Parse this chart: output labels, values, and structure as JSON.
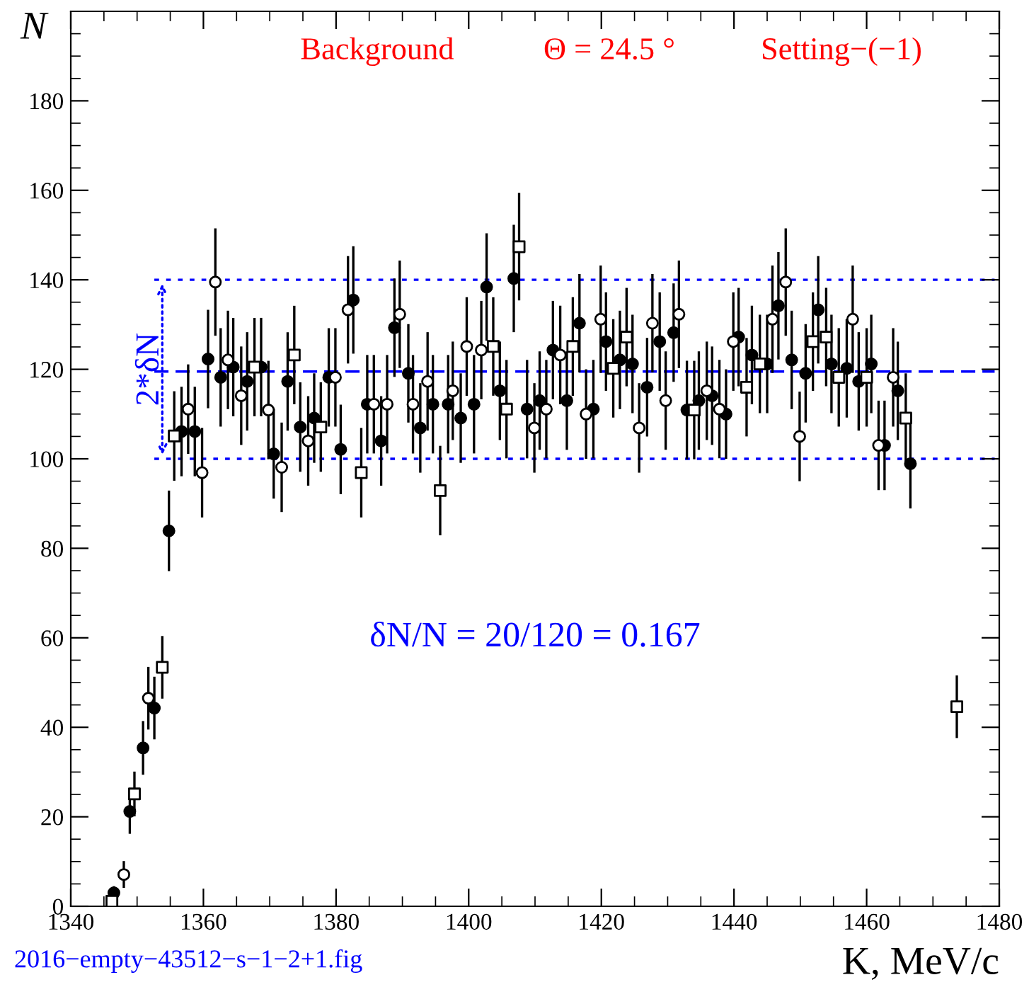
{
  "chart_data": {
    "type": "scatter",
    "xlabel": "K, MeV/c",
    "ylabel": "N",
    "xlim": [
      1340,
      1480
    ],
    "xticks": [
      1340,
      1360,
      1380,
      1400,
      1420,
      1440,
      1460,
      1480
    ],
    "ylim": [
      0,
      200
    ],
    "yticks": [
      0,
      20,
      40,
      60,
      80,
      100,
      120,
      140,
      160,
      180
    ],
    "grid": false,
    "series": [
      {
        "color": "#000000",
        "marker": "circle",
        "x": [
          1346.5,
          1348.9,
          1350.9,
          1352.6,
          1354.8,
          1356.7,
          1358.7,
          1360.7,
          1362.6,
          1364.5,
          1366.6,
          1368.7,
          1370.6,
          1372.7,
          1374.6,
          1376.7,
          1378.9,
          1380.7,
          1382.6,
          1384.7,
          1386.8,
          1388.8,
          1390.9,
          1392.7,
          1394.6,
          1396.9,
          1398.8,
          1400.8,
          1402.7,
          1404.7,
          1406.8,
          1408.8,
          1410.7,
          1412.7,
          1414.8,
          1416.7,
          1418.8,
          1420.7,
          1422.8,
          1424.7,
          1426.9,
          1428.8,
          1430.9,
          1432.9,
          1434.7,
          1436.7,
          1438.8,
          1440.7,
          1442.7,
          1445.0,
          1446.7,
          1448.7,
          1450.8,
          1452.7,
          1454.7,
          1457.0,
          1458.8,
          1460.7,
          1462.7,
          1464.7,
          1466.6
        ],
        "values": [
          3,
          21.2,
          35.4,
          44.3,
          83.9,
          106.1,
          106.1,
          122.3,
          118.2,
          120.5,
          117.3,
          120.5,
          101.1,
          117.3,
          107.1,
          109.1,
          118.2,
          102.1,
          135.5,
          112.2,
          104.0,
          129.3,
          119.1,
          106.9,
          112.2,
          112.2,
          109.1,
          112.2,
          138.4,
          115.2,
          140.3,
          111.1,
          113.0,
          124.3,
          113.0,
          130.3,
          111.1,
          126.2,
          122.1,
          121.2,
          116.0,
          126.2,
          128.2,
          110.9,
          113.0,
          114.1,
          110.0,
          127.2,
          123.2,
          121.2,
          134.2,
          122.1,
          119.1,
          133.3,
          121.2,
          120.2,
          117.3,
          121.2,
          103.0,
          115.2,
          98.9
        ],
        "errors": [
          1.5,
          5,
          6,
          7,
          9,
          10,
          10,
          11,
          11,
          11,
          11,
          11,
          10,
          11,
          10,
          10,
          11,
          10,
          12,
          11,
          10,
          11,
          11,
          10,
          11,
          11,
          10,
          11,
          12,
          11,
          12,
          11,
          11,
          11,
          11,
          11,
          11,
          11,
          11,
          11,
          11,
          11,
          11,
          11,
          11,
          11,
          10,
          11,
          11,
          11,
          12,
          11,
          11,
          12,
          11,
          11,
          11,
          11,
          10,
          11,
          10
        ]
      },
      {
        "color": "#ffffff",
        "marker": "circle",
        "x": [
          1348.0,
          1351.7,
          1357.7,
          1359.8,
          1361.8,
          1363.7,
          1365.7,
          1369.8,
          1371.8,
          1375.8,
          1379.9,
          1381.8,
          1385.7,
          1387.7,
          1389.6,
          1391.6,
          1393.8,
          1397.6,
          1399.7,
          1401.9,
          1409.9,
          1411.7,
          1413.8,
          1417.7,
          1419.9,
          1425.7,
          1427.7,
          1429.7,
          1431.7,
          1435.9,
          1437.8,
          1439.9,
          1445.8,
          1447.8,
          1449.9,
          1457.9,
          1461.8,
          1464.0
        ],
        "values": [
          7.1,
          46.5,
          111.1,
          96.9,
          139.5,
          122.1,
          114.1,
          110.9,
          98.1,
          104.0,
          118.2,
          133.3,
          112.2,
          112.2,
          132.3,
          112.2,
          117.3,
          115.2,
          125.1,
          124.3,
          106.9,
          111.1,
          123.2,
          110.0,
          131.2,
          106.9,
          130.3,
          113.0,
          132.3,
          115.2,
          111.1,
          126.2,
          131.2,
          139.5,
          105.0,
          131.2,
          103.0,
          118.2
        ],
        "errors": [
          3,
          7,
          10,
          10,
          12,
          11,
          11,
          11,
          10,
          10,
          11,
          12,
          11,
          11,
          12,
          11,
          11,
          11,
          11,
          11,
          10,
          11,
          11,
          10,
          12,
          10,
          11,
          11,
          12,
          11,
          11,
          11,
          12,
          12,
          10,
          12,
          10,
          11
        ]
      },
      {
        "color": "#ffffff",
        "marker": "square",
        "x": [
          1346.2,
          1349.6,
          1353.8,
          1355.6,
          1367.7,
          1373.7,
          1377.7,
          1383.8,
          1395.7,
          1403.7,
          1405.7,
          1407.6,
          1415.7,
          1421.8,
          1423.8,
          1434.0,
          1441.9,
          1443.9,
          1451.9,
          1453.9,
          1455.8,
          1460.0,
          1465.9,
          1473.6
        ],
        "values": [
          1.1,
          25.1,
          53.4,
          105.1,
          120.5,
          123.2,
          107.1,
          96.9,
          92.9,
          125.1,
          111.1,
          147.4,
          125.1,
          120.2,
          127.2,
          110.9,
          116.0,
          121.2,
          126.2,
          127.2,
          118.2,
          118.2,
          109.1,
          44.6
        ],
        "errors": [
          1,
          5,
          7,
          10,
          11,
          11,
          10,
          10,
          10,
          11,
          11,
          12,
          11,
          11,
          11,
          11,
          11,
          11,
          11,
          11,
          11,
          11,
          10,
          7
        ]
      }
    ],
    "ref_lines": [
      {
        "axis": "y",
        "value": 100,
        "color": "#0000ff",
        "line_style": "dotted"
      },
      {
        "axis": "y",
        "value": 119.5,
        "color": "#0000ff",
        "line_style": "dashed"
      },
      {
        "axis": "y",
        "value": 140,
        "color": "#0000ff",
        "line_style": "dotted"
      }
    ],
    "annotations": [
      "Background",
      "Θ = 24.5 °",
      "Setting−(−1)",
      {
        "text": "2*δN",
        "x": 1352,
        "y": 120
      },
      "δN/N = 20/120 = 0.167",
      "2016−empty−43512−s−1−2+1.fig"
    ]
  }
}
